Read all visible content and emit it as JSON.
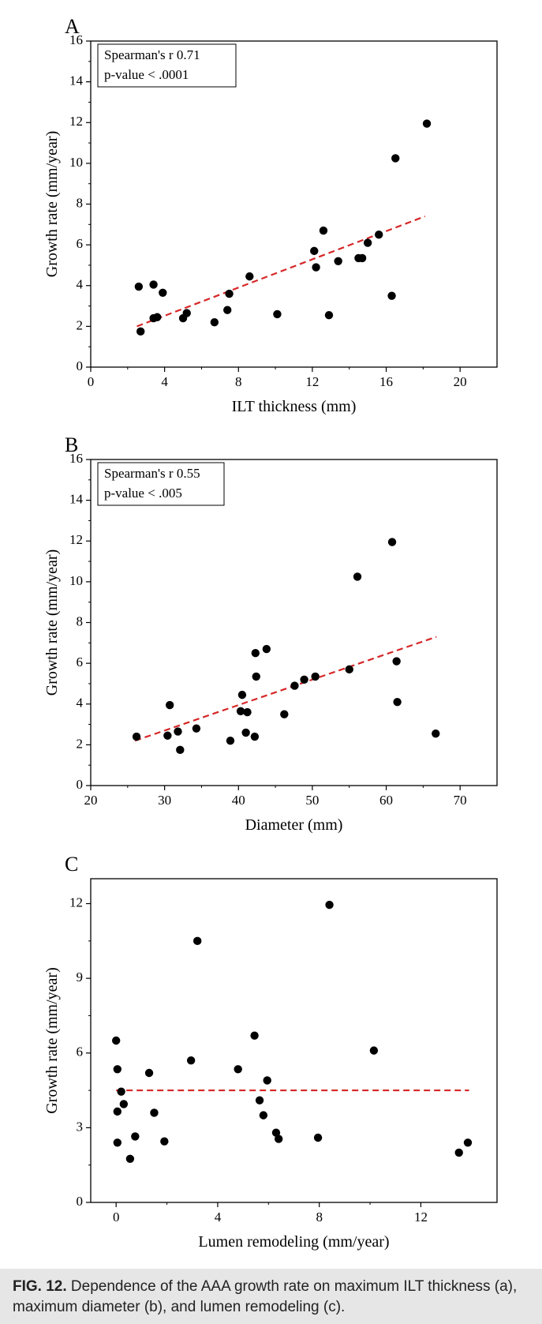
{
  "figure": {
    "caption_label": "FIG. 12.",
    "caption_text": "Dependence of the AAA growth rate on maximum ILT thickness (a), maximum diameter (b), and lumen remodeling (c)."
  },
  "colors": {
    "points": "#000000",
    "trend": "#d62728",
    "frame": "#000000"
  },
  "chart_data": [
    {
      "panel_label": "A",
      "type": "scatter",
      "xlabel": "ILT thickness (mm)",
      "ylabel": "Growth rate (mm/year)",
      "xlim": [
        0,
        22
      ],
      "ylim": [
        0,
        16
      ],
      "xticks": [
        0,
        4,
        8,
        12,
        16,
        20
      ],
      "yticks": [
        0,
        2,
        4,
        6,
        8,
        10,
        12,
        14,
        16
      ],
      "annotation": [
        "Spearman's r  0.71",
        "p-value < .0001"
      ],
      "trend": [
        [
          2.5,
          2.0
        ],
        [
          18.1,
          7.4
        ]
      ],
      "points": [
        [
          2.6,
          3.95
        ],
        [
          2.7,
          1.75
        ],
        [
          3.4,
          4.05
        ],
        [
          3.4,
          2.4
        ],
        [
          3.6,
          2.45
        ],
        [
          3.9,
          3.65
        ],
        [
          5.0,
          2.4
        ],
        [
          5.2,
          2.65
        ],
        [
          6.7,
          2.2
        ],
        [
          7.4,
          2.8
        ],
        [
          7.5,
          3.6
        ],
        [
          8.6,
          4.45
        ],
        [
          10.1,
          2.6
        ],
        [
          12.1,
          5.7
        ],
        [
          12.2,
          4.9
        ],
        [
          12.6,
          6.7
        ],
        [
          12.9,
          2.55
        ],
        [
          13.4,
          5.2
        ],
        [
          14.5,
          5.35
        ],
        [
          14.7,
          5.35
        ],
        [
          15.0,
          6.1
        ],
        [
          15.6,
          6.5
        ],
        [
          16.3,
          3.5
        ],
        [
          16.5,
          10.25
        ],
        [
          18.2,
          11.95
        ]
      ]
    },
    {
      "panel_label": "B",
      "type": "scatter",
      "xlabel": "Diameter (mm)",
      "ylabel": "Growth rate (mm/year)",
      "xlim": [
        20,
        75
      ],
      "ylim": [
        0,
        16
      ],
      "xticks": [
        20,
        30,
        40,
        50,
        60,
        70
      ],
      "yticks": [
        0,
        2,
        4,
        6,
        8,
        10,
        12,
        14,
        16
      ],
      "annotation": [
        "Spearman's r  0.55",
        "p-value < .005"
      ],
      "trend": [
        [
          26.0,
          2.2
        ],
        [
          66.8,
          7.3
        ]
      ],
      "points": [
        [
          26.2,
          2.4
        ],
        [
          30.4,
          2.45
        ],
        [
          30.7,
          3.95
        ],
        [
          31.8,
          2.65
        ],
        [
          32.1,
          1.75
        ],
        [
          34.3,
          2.8
        ],
        [
          38.9,
          2.2
        ],
        [
          40.3,
          3.65
        ],
        [
          40.5,
          4.45
        ],
        [
          41.0,
          2.6
        ],
        [
          41.2,
          3.6
        ],
        [
          42.2,
          2.4
        ],
        [
          42.3,
          6.5
        ],
        [
          42.4,
          5.35
        ],
        [
          43.8,
          6.7
        ],
        [
          46.2,
          3.5
        ],
        [
          47.6,
          4.9
        ],
        [
          48.9,
          5.2
        ],
        [
          50.4,
          5.35
        ],
        [
          55.0,
          5.7
        ],
        [
          56.1,
          10.25
        ],
        [
          60.8,
          11.95
        ],
        [
          61.4,
          6.1
        ],
        [
          61.5,
          4.1
        ],
        [
          66.7,
          2.55
        ]
      ]
    },
    {
      "panel_label": "C",
      "type": "scatter",
      "xlabel": "Lumen remodeling (mm/year)",
      "ylabel": "Growth rate (mm/year)",
      "xlim": [
        -1,
        15
      ],
      "ylim": [
        0,
        13
      ],
      "xticks": [
        0,
        4,
        8,
        12
      ],
      "yticks": [
        0,
        3,
        6,
        9,
        12
      ],
      "annotation": [],
      "trend": [
        [
          0.0,
          4.5
        ],
        [
          13.9,
          4.5
        ]
      ],
      "points": [
        [
          0.0,
          6.5
        ],
        [
          0.05,
          5.35
        ],
        [
          0.05,
          3.65
        ],
        [
          0.05,
          2.4
        ],
        [
          0.2,
          4.45
        ],
        [
          0.3,
          3.95
        ],
        [
          0.55,
          1.75
        ],
        [
          0.75,
          2.65
        ],
        [
          1.3,
          5.2
        ],
        [
          1.5,
          3.6
        ],
        [
          1.9,
          2.45
        ],
        [
          2.95,
          5.7
        ],
        [
          3.2,
          10.5
        ],
        [
          4.8,
          5.35
        ],
        [
          5.45,
          6.7
        ],
        [
          5.65,
          4.1
        ],
        [
          5.8,
          3.5
        ],
        [
          5.95,
          4.9
        ],
        [
          6.3,
          2.8
        ],
        [
          6.4,
          2.55
        ],
        [
          7.95,
          2.6
        ],
        [
          8.4,
          11.95
        ],
        [
          10.15,
          6.1
        ],
        [
          13.5,
          2.0
        ],
        [
          13.85,
          2.4
        ]
      ]
    }
  ]
}
